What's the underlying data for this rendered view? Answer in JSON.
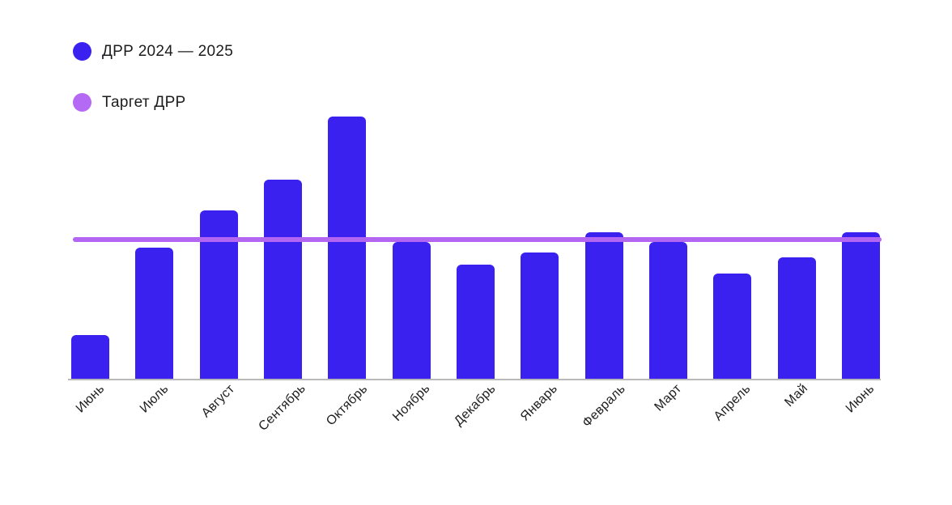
{
  "legend": {
    "series_label": "ДРР 2024 — 2025",
    "target_label": "Таргет ДРР"
  },
  "colors": {
    "bar": "#3b21f0",
    "legend_series_dot": "#3b21f0",
    "legend_target_dot": "#b46af4",
    "target_line": "#b266f2",
    "axis": "#b9b9b9",
    "text": "#1d1d1f"
  },
  "chart_data": {
    "type": "bar",
    "title": "",
    "xlabel": "",
    "ylabel": "",
    "categories": [
      "Июнь",
      "Июль",
      "Август",
      "Сентябрь",
      "Октябрь",
      "Ноябрь",
      "Декабрь",
      "Январь",
      "Февраль",
      "Март",
      "Апрель",
      "Май",
      "Июнь"
    ],
    "series": [
      {
        "name": "ДРР 2024 — 2025",
        "values": [
          32,
          94,
          121,
          143,
          188,
          98,
          82,
          91,
          105,
          98,
          76,
          87,
          105
        ]
      }
    ],
    "target_line": {
      "name": "Таргет ДРР",
      "value": 100
    },
    "value_axis": {
      "visible": false,
      "ylim": [
        0,
        196
      ],
      "note": "no y-axis ticks shown; values estimated relative to target line = 100"
    },
    "grid": false,
    "legend_position": "top-left",
    "tick_label_rotation": -45
  }
}
